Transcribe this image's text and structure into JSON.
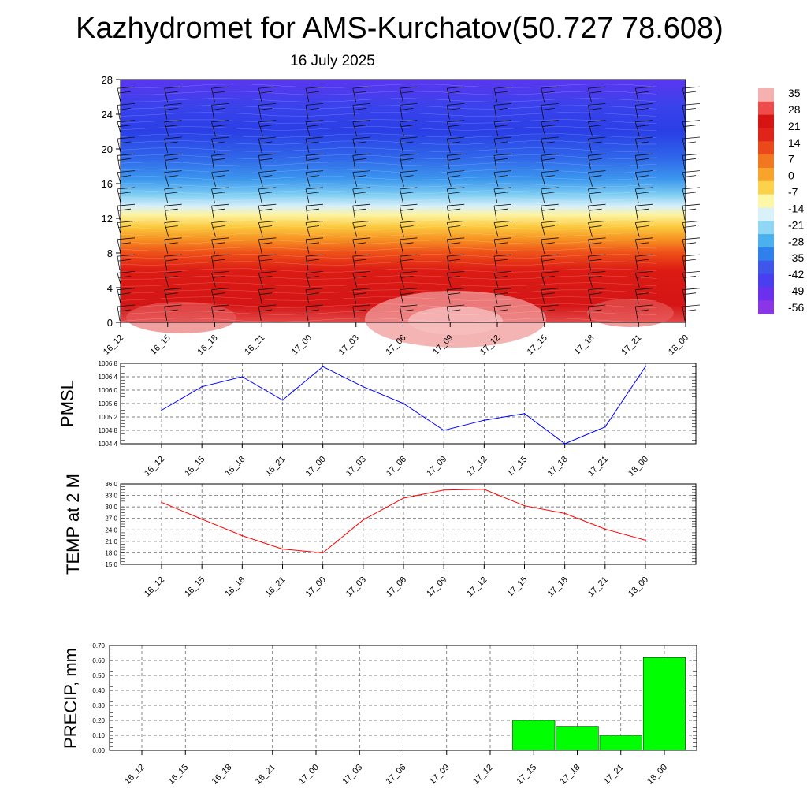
{
  "title": "Kazhydromet for AMS-Kurchatov(50.727 78.608)",
  "subtitle": "16 July 2025",
  "chart_data": [
    {
      "type": "heatmap",
      "x_categories": [
        "16_12",
        "16_15",
        "16_18",
        "16_21",
        "17_00",
        "17_03",
        "17_06",
        "17_09",
        "17_12",
        "17_15",
        "17_18",
        "17_21",
        "18_00"
      ],
      "y_ticks": [
        "0",
        "4",
        "8",
        "12",
        "16",
        "20",
        "24",
        "28"
      ],
      "ylim": [
        0,
        28
      ],
      "colorbar_labels": [
        "35",
        "28",
        "21",
        "14",
        "7",
        "0",
        "-7",
        "-14",
        "-21",
        "-28",
        "-35",
        "-42",
        "-49",
        "-56"
      ],
      "colorbar_colors": [
        "#f5b0b0",
        "#ee4b4b",
        "#d71414",
        "#e0241a",
        "#ea4a1a",
        "#f27820",
        "#f8a42c",
        "#fbd24a",
        "#fdf7a6",
        "#d9f2fa",
        "#8fd7f4",
        "#4ab0ee",
        "#2f7fec",
        "#3e57ea",
        "#4a3ff0",
        "#6a30ee",
        "#8a36e6"
      ],
      "layers": [
        {
          "y": 0,
          "color": "#e34848"
        },
        {
          "y": 2,
          "color": "#d51515"
        },
        {
          "y": 6,
          "color": "#dc1b14"
        },
        {
          "y": 8,
          "color": "#ee4f18"
        },
        {
          "y": 9.5,
          "color": "#f68f22"
        },
        {
          "y": 11,
          "color": "#fbc83c"
        },
        {
          "y": 12.4,
          "color": "#fdf3a0"
        },
        {
          "y": 13.4,
          "color": "#d6effa"
        },
        {
          "y": 14.8,
          "color": "#7bcbf2"
        },
        {
          "y": 16.5,
          "color": "#3c97ee"
        },
        {
          "y": 19,
          "color": "#2f66ea"
        },
        {
          "y": 22,
          "color": "#2a3fe6"
        },
        {
          "y": 25,
          "color": "#3a42ec"
        },
        {
          "y": 28,
          "color": "#5a36f0"
        }
      ]
    },
    {
      "type": "line",
      "ylabel": "PMSL",
      "x": [
        "16_12",
        "16_15",
        "16_18",
        "16_21",
        "17_00",
        "17_03",
        "17_06",
        "17_09",
        "17_12",
        "17_15",
        "17_18",
        "17_21",
        "18_00"
      ],
      "series": [
        {
          "values": [
            1005.4,
            1006.1,
            1006.4,
            1005.7,
            1006.7,
            1006.1,
            1005.6,
            1004.8,
            1005.1,
            1005.3,
            1004.4,
            1004.9,
            1006.7
          ],
          "color": "#0000ff"
        }
      ],
      "y_ticks": [
        "1004.4",
        "1004.8",
        "1005.2",
        "1005.6",
        "1006.0",
        "1006.4",
        "1006.8"
      ],
      "ylim": [
        1004.4,
        1006.8
      ],
      "grid": true
    },
    {
      "type": "line",
      "ylabel": "TEMP at 2 M",
      "x": [
        "16_12",
        "16_15",
        "16_18",
        "16_21",
        "17_00",
        "17_03",
        "17_06",
        "17_09",
        "17_12",
        "17_15",
        "17_18",
        "17_21",
        "18_00"
      ],
      "series": [
        {
          "values": [
            31.2,
            26.8,
            22.5,
            19.0,
            18.0,
            26.6,
            32.3,
            34.4,
            34.6,
            30.3,
            28.3,
            24.2,
            21.3
          ],
          "color": "#ff0000"
        }
      ],
      "y_ticks": [
        "15.0",
        "18.0",
        "21.0",
        "24.0",
        "27.0",
        "30.0",
        "33.0",
        "36.0"
      ],
      "ylim": [
        15.0,
        36.0
      ],
      "grid": true
    },
    {
      "type": "bar",
      "ylabel": "PRECIP, mm",
      "categories": [
        "16_12",
        "16_15",
        "16_18",
        "16_21",
        "17_00",
        "17_03",
        "17_06",
        "17_09",
        "17_12",
        "17_15",
        "17_18",
        "17_21",
        "18_00"
      ],
      "values": [
        0,
        0,
        0,
        0,
        0,
        0,
        0,
        0,
        0,
        0.2,
        0.16,
        0.1,
        0.62
      ],
      "color": "#00ff00",
      "y_ticks": [
        "0.00",
        "0.10",
        "0.20",
        "0.30",
        "0.40",
        "0.50",
        "0.60",
        "0.70"
      ],
      "ylim": [
        0,
        0.7
      ],
      "grid": true
    }
  ]
}
